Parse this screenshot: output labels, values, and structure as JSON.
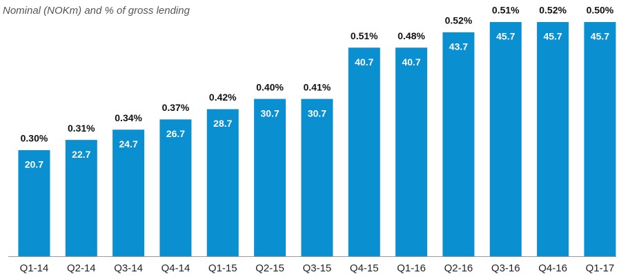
{
  "chart_data": {
    "type": "bar",
    "title": "Nominal (NOKm) and % of gross lending",
    "categories": [
      "Q1-14",
      "Q2-14",
      "Q3-14",
      "Q4-14",
      "Q1-15",
      "Q2-15",
      "Q3-15",
      "Q4-15",
      "Q1-16",
      "Q2-16",
      "Q3-16",
      "Q4-16",
      "Q1-17"
    ],
    "values": [
      20.7,
      22.7,
      24.7,
      26.7,
      28.7,
      30.7,
      30.7,
      40.7,
      40.7,
      43.7,
      45.7,
      45.7,
      45.7
    ],
    "color": "#0a8fd0",
    "percent_values": [
      0.3,
      0.31,
      0.34,
      0.37,
      0.42,
      0.4,
      0.41,
      0.51,
      0.48,
      0.52,
      0.51,
      0.52,
      0.5
    ],
    "percent_labels": [
      "0.30%",
      "0.31%",
      "0.34%",
      "0.37%",
      "0.42%",
      "0.40%",
      "0.41%",
      "0.51%",
      "0.48%",
      "0.52%",
      "0.51%",
      "0.52%",
      "0.50%"
    ],
    "ylim": [
      0,
      50
    ]
  }
}
